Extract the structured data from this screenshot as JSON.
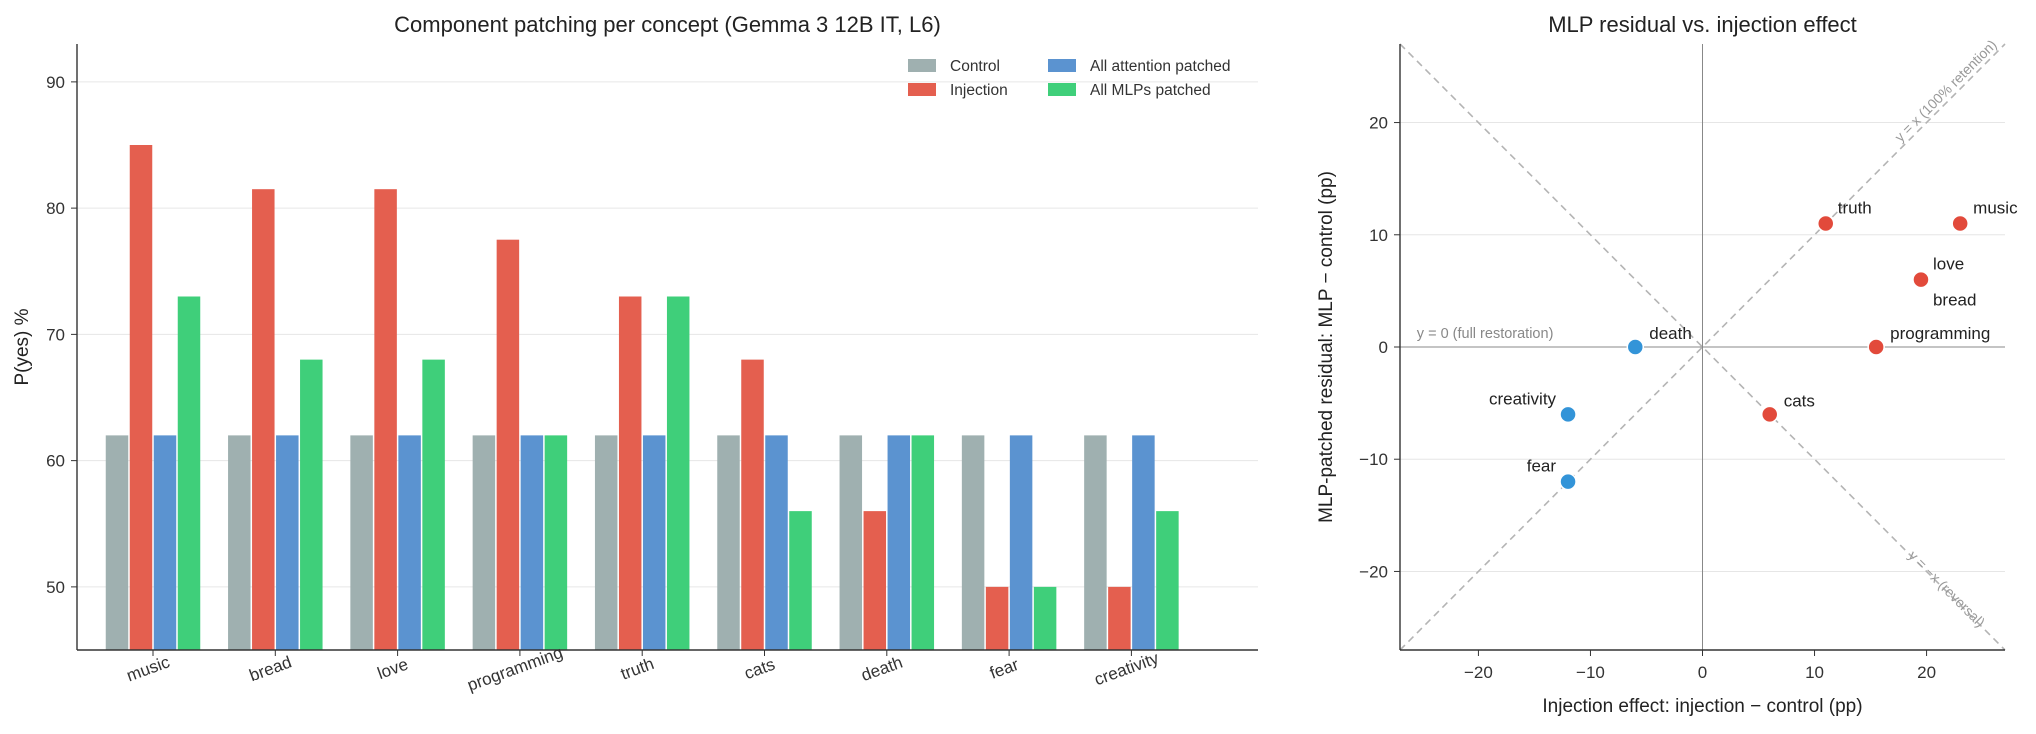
{
  "chart_data": [
    {
      "type": "bar",
      "title": "Component patching per concept (Gemma 3 12B IT, L6)",
      "xlabel": "",
      "ylabel": "P(yes) %",
      "ylim": [
        45,
        93
      ],
      "yticks": [
        50,
        60,
        70,
        80,
        90
      ],
      "grid": "horizontal",
      "legend_position": "top-right",
      "categories": [
        "music",
        "bread",
        "love",
        "programming",
        "truth",
        "cats",
        "death",
        "fear",
        "creativity"
      ],
      "series": [
        {
          "name": "Control",
          "color": "#9fb0b0",
          "values": [
            62,
            62,
            62,
            62,
            62,
            62,
            62,
            62,
            62
          ]
        },
        {
          "name": "Injection",
          "color": "#e45f4f",
          "values": [
            85,
            81.5,
            81.5,
            77.5,
            73,
            68,
            56,
            50,
            50
          ]
        },
        {
          "name": "All attention patched",
          "color": "#5b93d0",
          "values": [
            62,
            62,
            62,
            62,
            62,
            62,
            62,
            62,
            62
          ]
        },
        {
          "name": "All MLPs patched",
          "color": "#3fcf7a",
          "values": [
            73,
            68,
            68,
            62,
            73,
            56,
            62,
            50,
            56
          ]
        }
      ]
    },
    {
      "type": "scatter",
      "title": "MLP residual vs. injection effect",
      "xlabel": "Injection effect: injection − control (pp)",
      "ylabel": "MLP-patched residual: MLP − control (pp)",
      "xlim": [
        -27,
        27
      ],
      "ylim": [
        -27,
        27
      ],
      "xticks": [
        -20,
        -10,
        0,
        10,
        20
      ],
      "yticks": [
        -20,
        -10,
        0,
        10,
        20
      ],
      "grid": "horizontal",
      "reference_lines": [
        {
          "label": "y = x  (100% retention)"
        },
        {
          "label": "y = −x  (reversal)"
        },
        {
          "label": "y = 0  (full restoration)"
        }
      ],
      "points": [
        {
          "label": "music",
          "x": 23,
          "y": 11,
          "color": "#e24a3b"
        },
        {
          "label": "truth",
          "x": 11,
          "y": 11,
          "color": "#e24a3b"
        },
        {
          "label": "love",
          "x": 19.5,
          "y": 6,
          "color": "#e24a3b"
        },
        {
          "label": "bread",
          "x": 19.5,
          "y": 6,
          "color": "#e24a3b"
        },
        {
          "label": "programming",
          "x": 15.5,
          "y": 0,
          "color": "#e24a3b"
        },
        {
          "label": "cats",
          "x": 6,
          "y": -6,
          "color": "#e24a3b"
        },
        {
          "label": "death",
          "x": -6,
          "y": 0,
          "color": "#3394d8"
        },
        {
          "label": "creativity",
          "x": -12,
          "y": -6,
          "color": "#3394d8"
        },
        {
          "label": "fear",
          "x": -12,
          "y": -12,
          "color": "#3394d8"
        }
      ]
    }
  ]
}
